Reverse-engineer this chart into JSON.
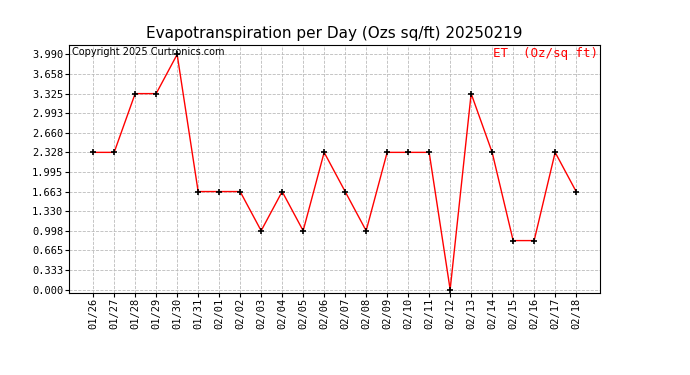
{
  "title": "Evapotranspiration per Day (Ozs sq/ft) 20250219",
  "copyright": "Copyright 2025 Curtronics.com",
  "legend_label": "ET  (Oz/sq ft)",
  "dates": [
    "01/26",
    "01/27",
    "01/28",
    "01/29",
    "01/30",
    "01/31",
    "02/01",
    "02/02",
    "02/03",
    "02/04",
    "02/05",
    "02/06",
    "02/07",
    "02/08",
    "02/09",
    "02/10",
    "02/11",
    "02/12",
    "02/13",
    "02/14",
    "02/15",
    "02/16",
    "02/17",
    "02/18"
  ],
  "values": [
    2.328,
    2.328,
    3.325,
    3.325,
    3.99,
    1.663,
    1.663,
    1.663,
    0.998,
    1.663,
    0.998,
    2.328,
    1.663,
    0.998,
    2.328,
    2.328,
    2.328,
    0.0,
    3.325,
    2.328,
    0.831,
    0.831,
    2.328,
    1.663
  ],
  "ylim_min": -0.05,
  "ylim_max": 4.15,
  "yticks": [
    0.0,
    0.333,
    0.665,
    0.998,
    1.33,
    1.663,
    1.995,
    2.328,
    2.66,
    2.993,
    3.325,
    3.658,
    3.99
  ],
  "line_color": "red",
  "marker_color": "black",
  "bg_color": "white",
  "grid_color": "#bbbbbb",
  "title_fontsize": 11,
  "copyright_fontsize": 7,
  "legend_fontsize": 9,
  "tick_fontsize": 7.5
}
